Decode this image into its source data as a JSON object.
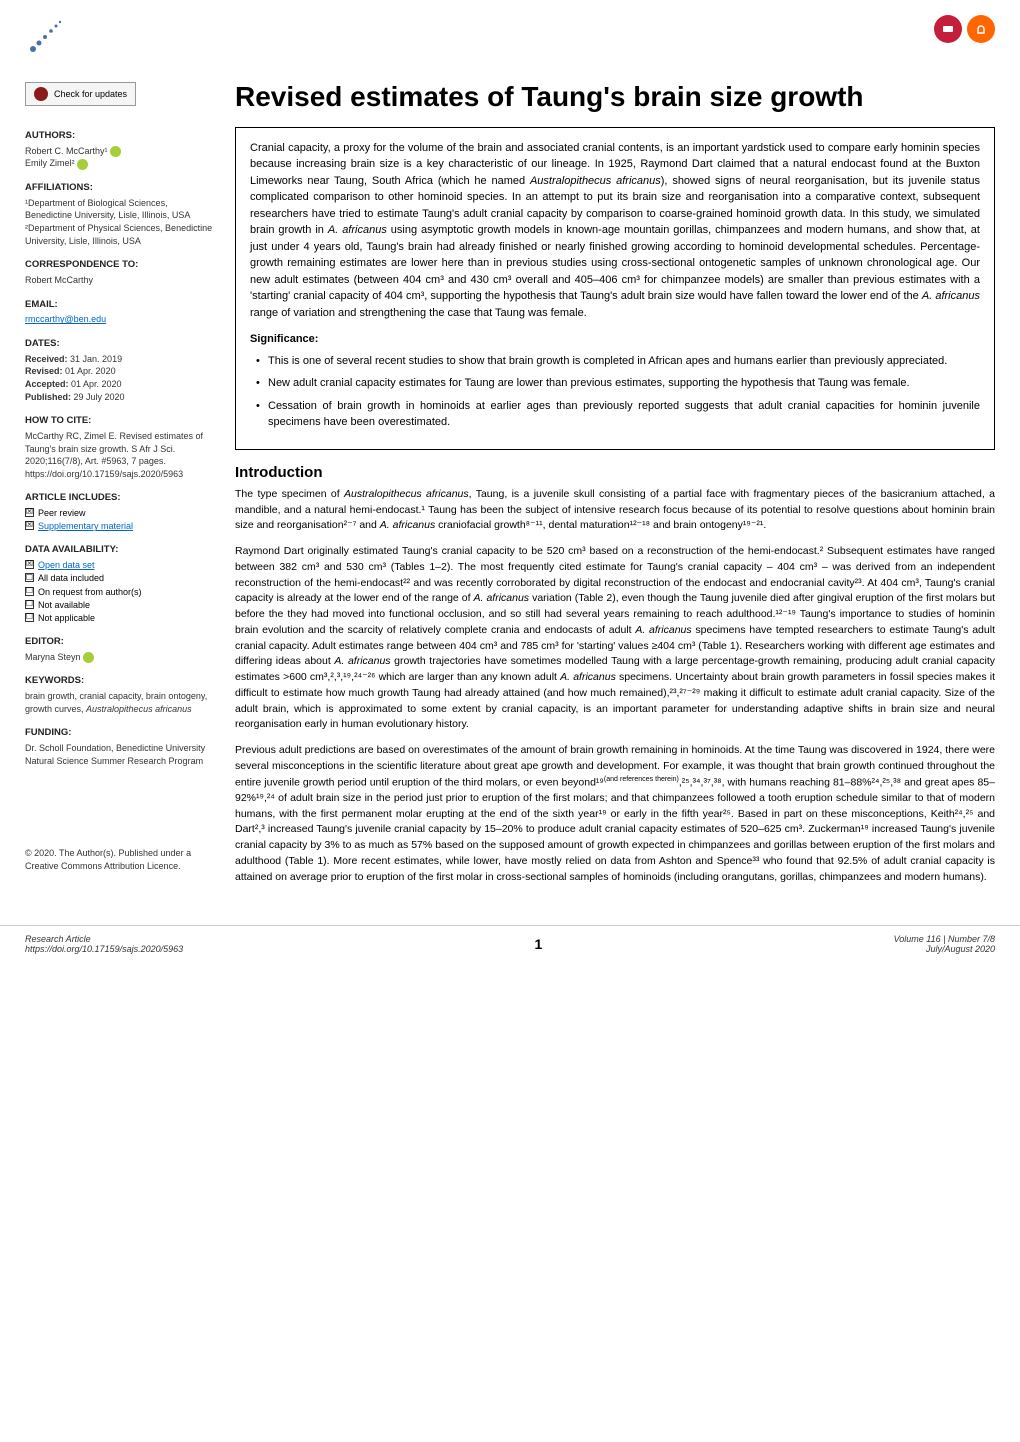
{
  "header": {
    "check_updates": "Check for updates"
  },
  "badges": {
    "badge1_bg": "#c41e3a",
    "badge2_bg": "#ff6600"
  },
  "sidebar": {
    "authors_label": "AUTHORS:",
    "author1": "Robert C. McCarthy¹",
    "author2": "Emily Zimel²",
    "affiliations_label": "AFFILIATIONS:",
    "affiliation1": "¹Department of Biological Sciences, Benedictine University, Lisle, Illinois, USA",
    "affiliation2": "²Department of Physical Sciences, Benedictine University, Lisle, Illinois, USA",
    "correspondence_label": "CORRESPONDENCE TO:",
    "correspondence_name": "Robert McCarthy",
    "email_label": "EMAIL:",
    "email": "rmccarthy@ben.edu",
    "dates_label": "DATES:",
    "received": "Received: 31 Jan. 2019",
    "revised": "Revised: 01 Apr. 2020",
    "accepted": "Accepted: 01 Apr. 2020",
    "published": "Published: 29 July 2020",
    "howtocite_label": "HOW TO CITE:",
    "howtocite": "McCarthy RC, Zimel E. Revised estimates of Taung's brain size growth. S Afr J Sci. 2020;116(7/8), Art. #5963, 7 pages. https://doi.org/10.17159/sajs.2020/5963",
    "article_includes_label": "ARTICLE INCLUDES:",
    "peer_review": "Peer review",
    "supplementary": "Supplementary material",
    "data_availability_label": "DATA AVAILABILITY:",
    "open_dataset": "Open data set",
    "all_data": "All data included",
    "on_request": "On request from author(s)",
    "not_available": "Not available",
    "not_applicable": "Not applicable",
    "editor_label": "EDITOR:",
    "editor": "Maryna Steyn",
    "keywords_label": "KEYWORDS:",
    "keywords": "brain growth, cranial capacity, brain ontogeny, growth curves, Australopithecus africanus",
    "funding_label": "FUNDING:",
    "funding": "Dr. Scholl Foundation, Benedictine University Natural Science Summer Research Program",
    "copyright": "© 2020. The Author(s). Published under a Creative Commons Attribution Licence."
  },
  "main": {
    "title": "Revised estimates of Taung's brain size growth",
    "abstract": "Cranial capacity, a proxy for the volume of the brain and associated cranial contents, is an important yardstick used to compare early hominin species because increasing brain size is a key characteristic of our lineage. In 1925, Raymond Dart claimed that a natural endocast found at the Buxton Limeworks near Taung, South Africa (which he named Australopithecus africanus), showed signs of neural reorganisation, but its juvenile status complicated comparison to other hominoid species. In an attempt to put its brain size and reorganisation into a comparative context, subsequent researchers have tried to estimate Taung's adult cranial capacity by comparison to coarse-grained hominoid growth data. In this study, we simulated brain growth in A. africanus using asymptotic growth models in known-age mountain gorillas, chimpanzees and modern humans, and show that, at just under 4 years old, Taung's brain had already finished or nearly finished growing according to hominoid developmental schedules. Percentage-growth remaining estimates are lower here than in previous studies using cross-sectional ontogenetic samples of unknown chronological age. Our new adult estimates (between 404 cm³ and 430 cm³ overall and 405–406 cm³ for chimpanzee models) are smaller than previous estimates with a 'starting' cranial capacity of 404 cm³, supporting the hypothesis that Taung's adult brain size would have fallen toward the lower end of the A. africanus range of variation and strengthening the case that Taung was female.",
    "significance_label": "Significance:",
    "sig1": "This is one of several recent studies to show that brain growth is completed in African apes and humans earlier than previously appreciated.",
    "sig2": "New adult cranial capacity estimates for Taung are lower than previous estimates, supporting the hypothesis that Taung was female.",
    "sig3": "Cessation of brain growth in hominoids at earlier ages than previously reported suggests that adult cranial capacities for hominin juvenile specimens have been overestimated.",
    "intro_heading": "Introduction",
    "para1": "The type specimen of Australopithecus africanus, Taung, is a juvenile skull consisting of a partial face with fragmentary pieces of the basicranium attached, a mandible, and a natural hemi-endocast.¹ Taung has been the subject of intensive research focus because of its potential to resolve questions about hominin brain size and reorganisation²⁻⁷ and A. africanus craniofacial growth⁸⁻¹¹, dental maturation¹²⁻¹⁸ and brain ontogeny¹⁹⁻²¹.",
    "para2": "Raymond Dart originally estimated Taung's cranial capacity to be 520 cm³ based on a reconstruction of the hemi-endocast.² Subsequent estimates have ranged between 382 cm³ and 530 cm³ (Tables 1–2). The most frequently cited estimate for Taung's cranial capacity – 404 cm³ – was derived from an independent reconstruction of the hemi-endocast²² and was recently corroborated by digital reconstruction of the endocast and endocranial cavity²³. At 404 cm³, Taung's cranial capacity is already at the lower end of the range of A. africanus variation (Table 2), even though the Taung juvenile died after gingival eruption of the first molars but before the they had moved into functional occlusion, and so still had several years remaining to reach adulthood.¹²⁻¹⁹ Taung's importance to studies of hominin brain evolution and the scarcity of relatively complete crania and endocasts of adult A. africanus specimens have tempted researchers to estimate Taung's adult cranial capacity. Adult estimates range between 404 cm³ and 785 cm³ for 'starting' values ≥404 cm³ (Table 1). Researchers working with different age estimates and differing ideas about A. africanus growth trajectories have sometimes modelled Taung with a large percentage-growth remaining, producing adult cranial capacity estimates >600 cm³,²,³,¹⁹,²⁴⁻²⁶ which are larger than any known adult A. africanus specimens. Uncertainty about brain growth parameters in fossil species makes it difficult to estimate how much growth Taung had already attained (and how much remained),²³,²⁷⁻²⁹ making it difficult to estimate adult cranial capacity. Size of the adult brain, which is approximated to some extent by cranial capacity, is an important parameter for understanding adaptive shifts in brain size and neural reorganisation early in human evolutionary history.",
    "para3": "Previous adult predictions are based on overestimates of the amount of brain growth remaining in hominoids. At the time Taung was discovered in 1924, there were several misconceptions in the scientific literature about great ape growth and development. For example, it was thought that brain growth continued throughout the entire juvenile growth period until eruption of the third molars, or even beyond¹⁹(and references therein),²⁵,³⁴,³⁷,³⁸, with humans reaching 81–88%²⁴,²⁵,³⁸ and great apes 85–92%¹⁹,²⁴ of adult brain size in the period just prior to eruption of the first molars; and that chimpanzees followed a tooth eruption schedule similar to that of modern humans, with the first permanent molar erupting at the end of the sixth year¹⁹ or early in the fifth year²⁵. Based in part on these misconceptions, Keith²⁴,²⁵ and Dart²,³ increased Taung's juvenile cranial capacity by 15–20% to produce adult cranial capacity estimates of 520–625 cm³. Zuckerman¹⁹ increased Taung's juvenile cranial capacity by 3% to as much as 57% based on the supposed amount of growth expected in chimpanzees and gorillas between eruption of the first molars and adulthood (Table 1). More recent estimates, while lower, have mostly relied on data from Ashton and Spence³³ who found that 92.5% of adult cranial capacity is attained on average prior to eruption of the first molar in cross-sectional samples of hominoids (including orangutans, gorillas, chimpanzees and modern humans)."
  },
  "footer": {
    "left_line1": "Research Article",
    "left_line2": "https://doi.org/10.17159/sajs.2020/5963",
    "page_number": "1",
    "right_line1": "Volume 116 | Number 7/8",
    "right_line2": "July/August 2020"
  }
}
